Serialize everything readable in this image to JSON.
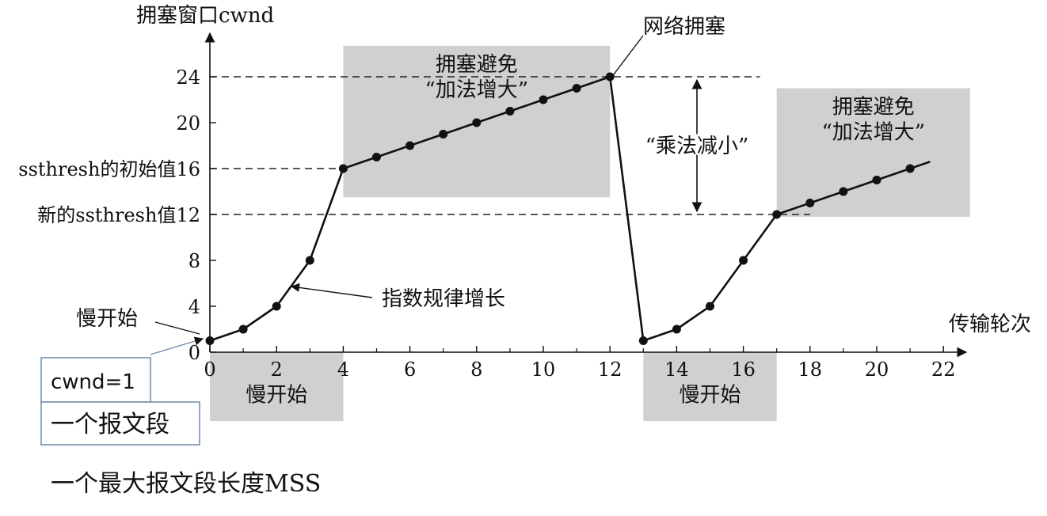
{
  "chart_data": {
    "type": "line",
    "ylabel": "拥塞窗口cwnd",
    "xlabel": "传输轮次",
    "xlim": [
      0,
      23
    ],
    "ylim": [
      0,
      27
    ],
    "x_ticks": [
      0,
      2,
      4,
      6,
      8,
      10,
      12,
      14,
      16,
      18,
      20,
      22
    ],
    "y_ticks": [
      0,
      4,
      8,
      12,
      16,
      20,
      24
    ],
    "x": [
      0,
      1,
      2,
      3,
      4,
      5,
      6,
      7,
      8,
      9,
      10,
      11,
      12,
      13,
      14,
      15,
      16,
      17,
      18,
      19,
      20,
      21
    ],
    "values": [
      1,
      2,
      4,
      8,
      16,
      17,
      18,
      19,
      20,
      21,
      22,
      23,
      24,
      1,
      2,
      4,
      8,
      12,
      13,
      14,
      15,
      16
    ],
    "line_extension_to": [
      21.6,
      16.6
    ],
    "threshold_lines": [
      24,
      16,
      12
    ],
    "threshold_labels": {
      "16": "ssthresh的初始值16",
      "12": "新的ssthresh值12"
    },
    "shaded_regions": [
      {
        "label_lines": [
          "拥塞避免",
          "“加法增大”"
        ],
        "x": [
          4,
          12
        ],
        "y": [
          13.5,
          26.7
        ]
      },
      {
        "label_lines": [
          "拥塞避免",
          "“加法增大”"
        ],
        "x": [
          17,
          22.8
        ],
        "y": [
          11.8,
          23
        ]
      },
      {
        "label_lines": [
          "慢开始"
        ],
        "x": [
          0,
          4
        ],
        "y": [
          -6,
          0
        ]
      },
      {
        "label_lines": [
          "慢开始"
        ],
        "x": [
          13,
          17
        ],
        "y": [
          -6,
          0
        ]
      }
    ],
    "annotations": {
      "congestion": "网络拥塞",
      "exponential": "指数规律增长",
      "slow_start_pointer": "慢开始",
      "multiplicative": "“乘法减小”"
    }
  },
  "legend_boxes": {
    "cwnd": "cwnd=1",
    "segment": "一个报文段"
  },
  "footer_note": "一个最大报文段长度MSS"
}
